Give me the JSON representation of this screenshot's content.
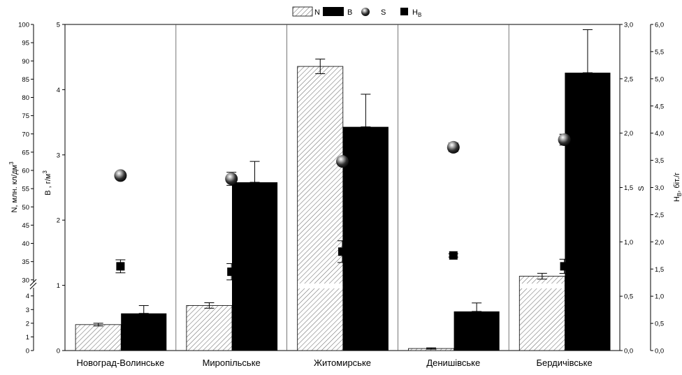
{
  "chart_data": {
    "type": "bar",
    "categories": [
      "Новоград-Волинське",
      "Миропільське",
      "Житомирське",
      "Денишівське",
      "Бердичівське"
    ],
    "legend": {
      "placement": "top-center",
      "items": [
        {
          "label": "N",
          "marker": "hatched-bar"
        },
        {
          "label": "B",
          "marker": "solid-bar"
        },
        {
          "label": "S",
          "marker": "sphere"
        },
        {
          "label": "H",
          "sub": "B",
          "marker": "square"
        }
      ]
    },
    "axes": {
      "n_axis": {
        "label": "N, млн. кл/дм",
        "label_sup": "3",
        "lower_ticks": [
          "0",
          "1",
          "2",
          "3",
          "4"
        ],
        "upper_ticks": [
          "30",
          "35",
          "40",
          "45",
          "50",
          "55",
          "60",
          "65",
          "70",
          "75",
          "80",
          "85",
          "90",
          "95",
          "100"
        ],
        "lower_range": [
          0,
          4.6
        ],
        "upper_range": [
          29,
          100
        ],
        "axis_break": true
      },
      "b_axis": {
        "label": "B , г/м",
        "label_sup": "3",
        "range": [
          0,
          5
        ],
        "ticks": [
          "0",
          "1",
          "2",
          "3",
          "4",
          "5"
        ]
      },
      "s_axis": {
        "label": "S",
        "range": [
          0,
          3
        ],
        "ticks": [
          "0,0",
          "0,5",
          "1,0",
          "1,5",
          "2,0",
          "2,5",
          "3,0"
        ]
      },
      "h_axis": {
        "label": "H",
        "label_sub": "B",
        "label_tail": ", біт./г",
        "range": [
          0,
          6
        ],
        "ticks": [
          "0,0",
          "0,5",
          "1,0",
          "1,5",
          "2,0",
          "2,5",
          "3,0",
          "3,5",
          "4,0",
          "4,5",
          "5,0",
          "5,5",
          "6,0"
        ]
      }
    },
    "series": [
      {
        "name": "N",
        "axis": "n_axis",
        "style": "hatched",
        "values": [
          1.9,
          3.3,
          88.5,
          0.15,
          31.0
        ],
        "errors": [
          0.1,
          0.2,
          2.0,
          0.05,
          0.8
        ],
        "segment_break": [
          false,
          false,
          true,
          false,
          true
        ]
      },
      {
        "name": "B",
        "axis": "b_axis",
        "style": "solid",
        "values": [
          0.57,
          2.58,
          3.43,
          0.6,
          4.26
        ],
        "errors": [
          0.12,
          0.32,
          0.5,
          0.13,
          0.66
        ]
      },
      {
        "name": "S",
        "axis": "s_axis",
        "style": "sphere",
        "values": [
          1.61,
          1.58,
          1.74,
          1.87,
          1.94
        ],
        "errors": [
          0.03,
          0.06,
          0.03,
          0.04,
          0.05
        ]
      },
      {
        "name": "H_B",
        "axis": "h_axis",
        "style": "square",
        "values": [
          1.55,
          1.45,
          1.82,
          1.75,
          1.55
        ],
        "errors": [
          0.12,
          0.15,
          0.2,
          0.03,
          0.13
        ]
      }
    ]
  }
}
